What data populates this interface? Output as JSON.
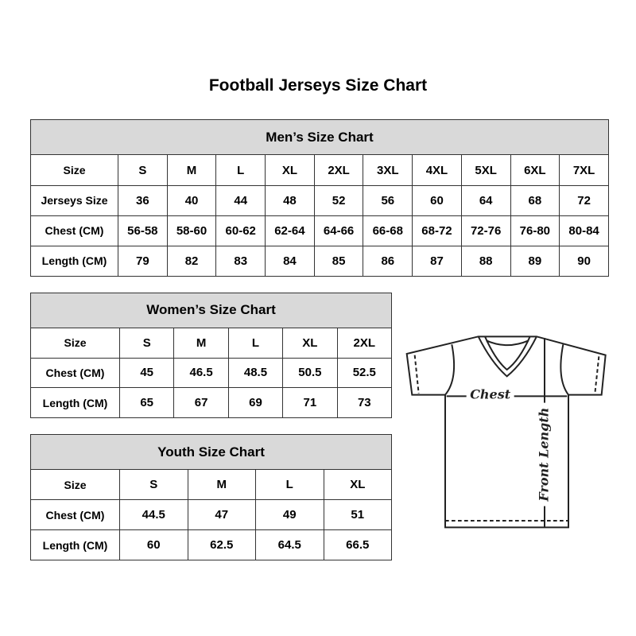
{
  "title": "Football Jerseys Size Chart",
  "men": {
    "title": "Men’s Size Chart",
    "rows": [
      [
        "Size",
        "S",
        "M",
        "L",
        "XL",
        "2XL",
        "3XL",
        "4XL",
        "5XL",
        "6XL",
        "7XL"
      ],
      [
        "Jerseys Size",
        "36",
        "40",
        "44",
        "48",
        "52",
        "56",
        "60",
        "64",
        "68",
        "72"
      ],
      [
        "Chest (CM)",
        "56-58",
        "58-60",
        "60-62",
        "62-64",
        "64-66",
        "66-68",
        "68-72",
        "72-76",
        "76-80",
        "80-84"
      ],
      [
        "Length (CM)",
        "79",
        "82",
        "83",
        "84",
        "85",
        "86",
        "87",
        "88",
        "89",
        "90"
      ]
    ]
  },
  "women": {
    "title": "Women’s Size Chart",
    "rows": [
      [
        "Size",
        "S",
        "M",
        "L",
        "XL",
        "2XL"
      ],
      [
        "Chest (CM)",
        "45",
        "46.5",
        "48.5",
        "50.5",
        "52.5"
      ],
      [
        "Length (CM)",
        "65",
        "67",
        "69",
        "71",
        "73"
      ]
    ]
  },
  "youth": {
    "title": "Youth Size Chart",
    "rows": [
      [
        "Size",
        "S",
        "M",
        "L",
        "XL"
      ],
      [
        "Chest (CM)",
        "44.5",
        "47",
        "49",
        "51"
      ],
      [
        "Length (CM)",
        "60",
        "62.5",
        "64.5",
        "66.5"
      ]
    ]
  },
  "diagram": {
    "chest_label": "Chest",
    "length_label": "Front Length"
  }
}
